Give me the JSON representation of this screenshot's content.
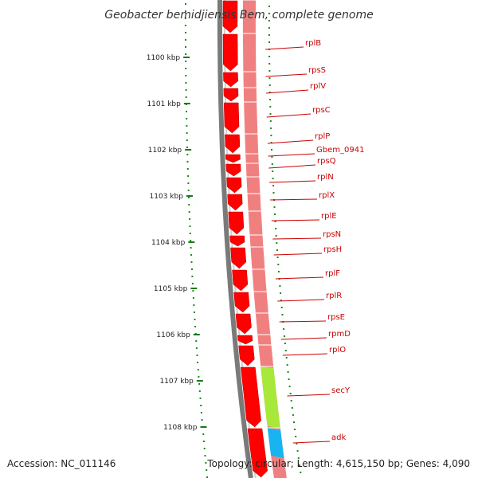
{
  "title": "Geobacter bemidjiensis Bem, complete genome",
  "footer": {
    "accession": "Accession: NC_011146",
    "summary": "Topology: circular; Length: 4,615,150 bp; Genes: 4,090"
  },
  "ticks": [
    {
      "label": "1100 kbp"
    },
    {
      "label": "1101 kbp"
    },
    {
      "label": "1102 kbp"
    },
    {
      "label": "1103 kbp"
    },
    {
      "label": "1104 kbp"
    },
    {
      "label": "1105 kbp"
    },
    {
      "label": "1106 kbp"
    },
    {
      "label": "1107 kbp"
    },
    {
      "label": "1108 kbp"
    }
  ],
  "genes": [
    {
      "name": "rplB"
    },
    {
      "name": "rpsS"
    },
    {
      "name": "rplV"
    },
    {
      "name": "rpsC"
    },
    {
      "name": "rplP"
    },
    {
      "name": "Gbem_0941"
    },
    {
      "name": "rpsQ"
    },
    {
      "name": "rplN"
    },
    {
      "name": "rplX"
    },
    {
      "name": "rplE"
    },
    {
      "name": "rpsN"
    },
    {
      "name": "rpsH"
    },
    {
      "name": "rplF"
    },
    {
      "name": "rplR"
    },
    {
      "name": "rpsE"
    },
    {
      "name": "rpmD"
    },
    {
      "name": "rplO"
    },
    {
      "name": "secY"
    },
    {
      "name": "adk"
    }
  ],
  "colors": {
    "cds": "#ff0000",
    "cds_light": "#f08080",
    "secY_band": "#a8e83a",
    "adk_band": "#18b4f0",
    "backbone": "#7a7a7a",
    "gc_dots": "#1a8a1a",
    "label": "#cc0000"
  }
}
